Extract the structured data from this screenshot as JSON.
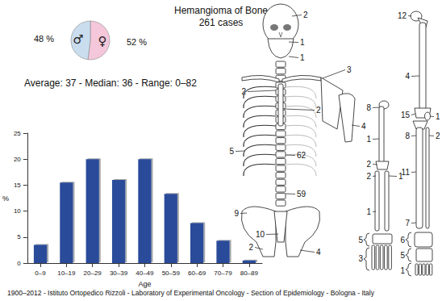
{
  "title": "Hemangioma of Bone",
  "subtitle": "261 cases",
  "footer": "1900–2012 - Istituto Ortopedico Rizzoli - Laboratory of Experimental Oncology - Section of Epidemiology - Bologna - Italy",
  "chart_data": [
    {
      "type": "pie",
      "categories": [
        "♀",
        "♂"
      ],
      "values": [
        52,
        48
      ],
      "value_labels": [
        "52 %",
        "48 %"
      ],
      "colors": [
        "#f4c7da",
        "#c9ddef"
      ],
      "data_labels": true
    },
    {
      "type": "bar",
      "title": "Average: 37 - Median: 36 - Range: 0–82",
      "categories": [
        "0–9",
        "10–19",
        "20–29",
        "30–39",
        "40–49",
        "50–59",
        "60–69",
        "70–79",
        "80–89"
      ],
      "values": [
        3.5,
        15.5,
        20,
        16,
        20,
        13.3,
        7.7,
        4.3,
        0.5
      ],
      "color": "#2b4c9a",
      "xlabel": "Age",
      "ylabel": "%",
      "ylim": [
        0,
        25
      ],
      "yticks": [
        0,
        5,
        10,
        15,
        20,
        25
      ],
      "grid": false
    }
  ],
  "skeleton": {
    "trunk": [
      2,
      1,
      1,
      2,
      3,
      4,
      2,
      5,
      62,
      59,
      9,
      10,
      2,
      4
    ],
    "upper_limb": [
      8,
      1,
      2,
      2,
      1,
      1,
      5,
      3
    ],
    "lower_limb": [
      12,
      4,
      15,
      1,
      8,
      2,
      11,
      7,
      6,
      5,
      1
    ]
  }
}
